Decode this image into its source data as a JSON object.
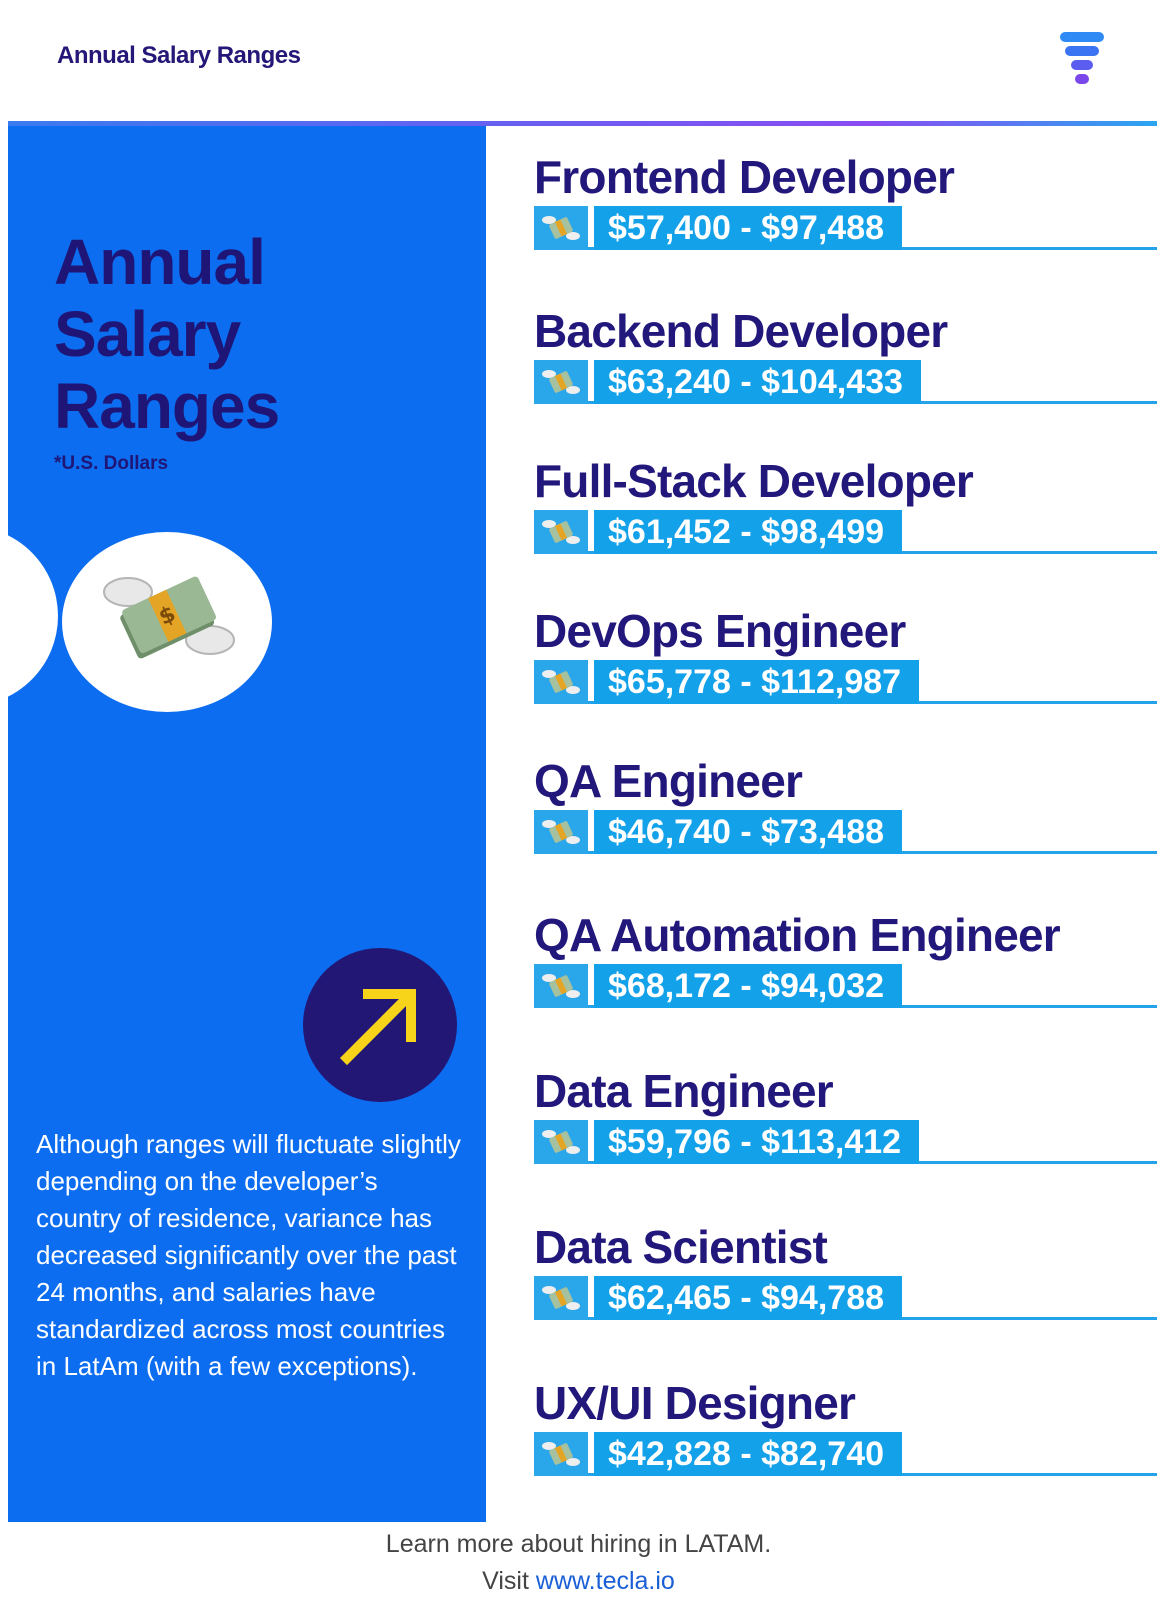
{
  "header": {
    "title": "Annual Salary Ranges",
    "logo_icon": "tecla-logo-icon"
  },
  "left": {
    "title_lines": [
      "Annual",
      "Salary",
      "Ranges"
    ],
    "currency_note": "*U.S. Dollars",
    "money_icon": "money-with-wings-icon",
    "arrow_icon": "arrow-up-right-icon",
    "description": "Although ranges will fluctuate slightly depending on the developer’s country of residence, variance has decreased significantly over the past 24 months, and salaries have standardized across most countries in LatAm (with a few exceptions)."
  },
  "jobs": [
    {
      "title": "Frontend Developer",
      "salary": "$57,400 - $97,488"
    },
    {
      "title": "Backend Developer",
      "salary": "$63,240 - $104,433"
    },
    {
      "title": "Full-Stack Developer",
      "salary": "$61,452 - $98,499"
    },
    {
      "title": "DevOps Engineer",
      "salary": "$65,778 - $112,987"
    },
    {
      "title": "QA Engineer",
      "salary": "$46,740 - $73,488"
    },
    {
      "title": "QA Automation Engineer",
      "salary": "$68,172 - $94,032"
    },
    {
      "title": "Data Engineer",
      "salary": "$59,796 - $113,412"
    },
    {
      "title": "Data Scientist",
      "salary": "$62,465 - $94,788"
    },
    {
      "title": "UX/UI Designer",
      "salary": "$42,828 - $82,740"
    }
  ],
  "footer": {
    "line1": "Learn more about hiring in LATAM.",
    "visit_label": "Visit",
    "link_text": "www.tecla.io"
  },
  "colors": {
    "panel_blue": "#0c6df0",
    "navy": "#1e1576",
    "salary_blue": "#13a1ea",
    "arrow_yellow": "#f7d31a"
  }
}
